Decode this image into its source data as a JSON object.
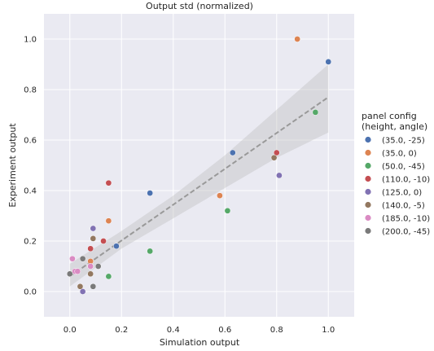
{
  "chart_data": {
    "type": "scatter",
    "title": "Output std (normalized)",
    "xlabel": "Simulation output",
    "ylabel": "Experiment output",
    "xlim": [
      -0.1,
      1.1
    ],
    "ylim": [
      -0.1,
      1.1
    ],
    "xticks": [
      "0.0",
      "0.2",
      "0.4",
      "0.6",
      "0.8",
      "1.0"
    ],
    "yticks": [
      "0.0",
      "0.2",
      "0.4",
      "0.6",
      "0.8",
      "1.0"
    ],
    "xtick_values": [
      0.0,
      0.2,
      0.4,
      0.6,
      0.8,
      1.0
    ],
    "ytick_values": [
      0.0,
      0.2,
      0.4,
      0.6,
      0.8,
      1.0
    ],
    "grid": true,
    "legend_placement": "right-outside",
    "legend_title_lines": [
      "panel config",
      "(height, angle)"
    ],
    "regression_line": {
      "x": [
        0.0,
        1.0
      ],
      "y": [
        0.06,
        0.77
      ],
      "style": "dashed",
      "color": "#999999"
    },
    "confidence_band": {
      "x": [
        0.0,
        0.2,
        0.4,
        0.6,
        0.8,
        1.0
      ],
      "upper": [
        0.11,
        0.24,
        0.38,
        0.54,
        0.72,
        0.9
      ],
      "lower": [
        0.02,
        0.17,
        0.29,
        0.41,
        0.53,
        0.63
      ],
      "color": "#bbbbbb"
    },
    "series": [
      {
        "name": "(35.0, -25)",
        "color": "#4c72b0",
        "points": [
          [
            0.18,
            0.18
          ],
          [
            0.31,
            0.39
          ],
          [
            0.63,
            0.55
          ],
          [
            1.0,
            0.91
          ]
        ]
      },
      {
        "name": "(35.0, 0)",
        "color": "#dd8452",
        "points": [
          [
            0.08,
            0.12
          ],
          [
            0.15,
            0.28
          ],
          [
            0.58,
            0.38
          ],
          [
            0.88,
            1.0
          ]
        ]
      },
      {
        "name": "(50.0, -45)",
        "color": "#55a868",
        "points": [
          [
            0.15,
            0.06
          ],
          [
            0.31,
            0.16
          ],
          [
            0.61,
            0.32
          ],
          [
            0.95,
            0.71
          ]
        ]
      },
      {
        "name": "(110.0, -10)",
        "color": "#c44e52",
        "points": [
          [
            0.08,
            0.17
          ],
          [
            0.13,
            0.2
          ],
          [
            0.15,
            0.43
          ],
          [
            0.8,
            0.55
          ]
        ]
      },
      {
        "name": "(125.0, 0)",
        "color": "#8172b3",
        "points": [
          [
            0.05,
            0.0
          ],
          [
            0.08,
            0.1
          ],
          [
            0.09,
            0.25
          ],
          [
            0.81,
            0.46
          ]
        ]
      },
      {
        "name": "(140.0, -5)",
        "color": "#937860",
        "points": [
          [
            0.04,
            0.02
          ],
          [
            0.08,
            0.07
          ],
          [
            0.09,
            0.21
          ],
          [
            0.79,
            0.53
          ]
        ]
      },
      {
        "name": "(185.0, -10)",
        "color": "#da8bc3",
        "points": [
          [
            0.01,
            0.13
          ],
          [
            0.02,
            0.08
          ],
          [
            0.03,
            0.08
          ],
          [
            0.08,
            0.1
          ]
        ]
      },
      {
        "name": "(200.0, -45)",
        "color": "#7a7a7a",
        "points": [
          [
            0.0,
            0.07
          ],
          [
            0.05,
            0.13
          ],
          [
            0.09,
            0.02
          ],
          [
            0.11,
            0.1
          ]
        ]
      }
    ]
  }
}
